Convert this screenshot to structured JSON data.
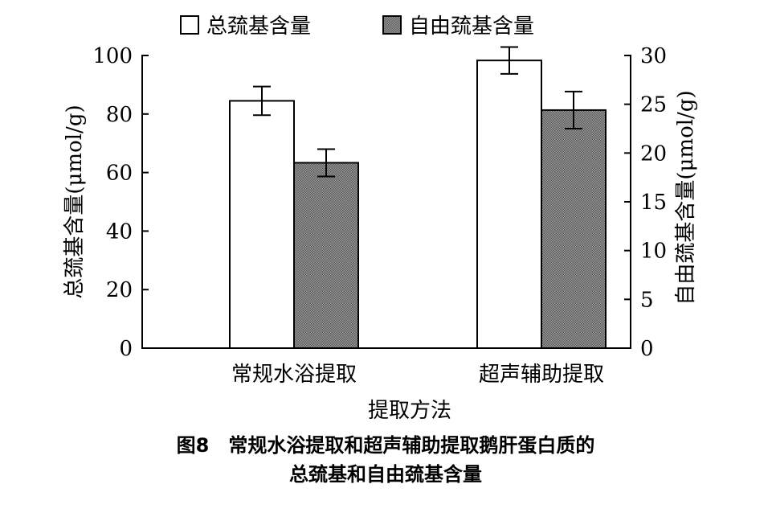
{
  "chart_data": {
    "type": "bar",
    "categories": [
      "常规水浴提取",
      "超声辅助提取"
    ],
    "xlabel": "提取方法",
    "ylabel_left": "总巯基含量(μmol/g)",
    "ylabel_right": "自由巯基含量(μmol/g)",
    "ylim_left": [
      0,
      100
    ],
    "yticks_left": [
      0,
      20,
      40,
      60,
      80,
      100
    ],
    "ylim_right": [
      0,
      30
    ],
    "yticks_right": [
      0,
      5,
      10,
      15,
      20,
      25,
      30
    ],
    "series": [
      {
        "name": "总巯基含量",
        "axis": "left",
        "values": [
          84.5,
          98.3
        ],
        "errors": [
          4.9,
          4.6
        ],
        "fill": "#ffffff"
      },
      {
        "name": "自由巯基含量",
        "axis": "right",
        "values": [
          19.0,
          24.4
        ],
        "errors": [
          1.4,
          1.9
        ],
        "fill": "#808080"
      }
    ],
    "legend_position": "top-center",
    "grid": false
  },
  "caption": {
    "line1": "图8　常规水浴提取和超声辅助提取鹅肝蛋白质的",
    "line2": "总巯基和自由巯基含量"
  }
}
